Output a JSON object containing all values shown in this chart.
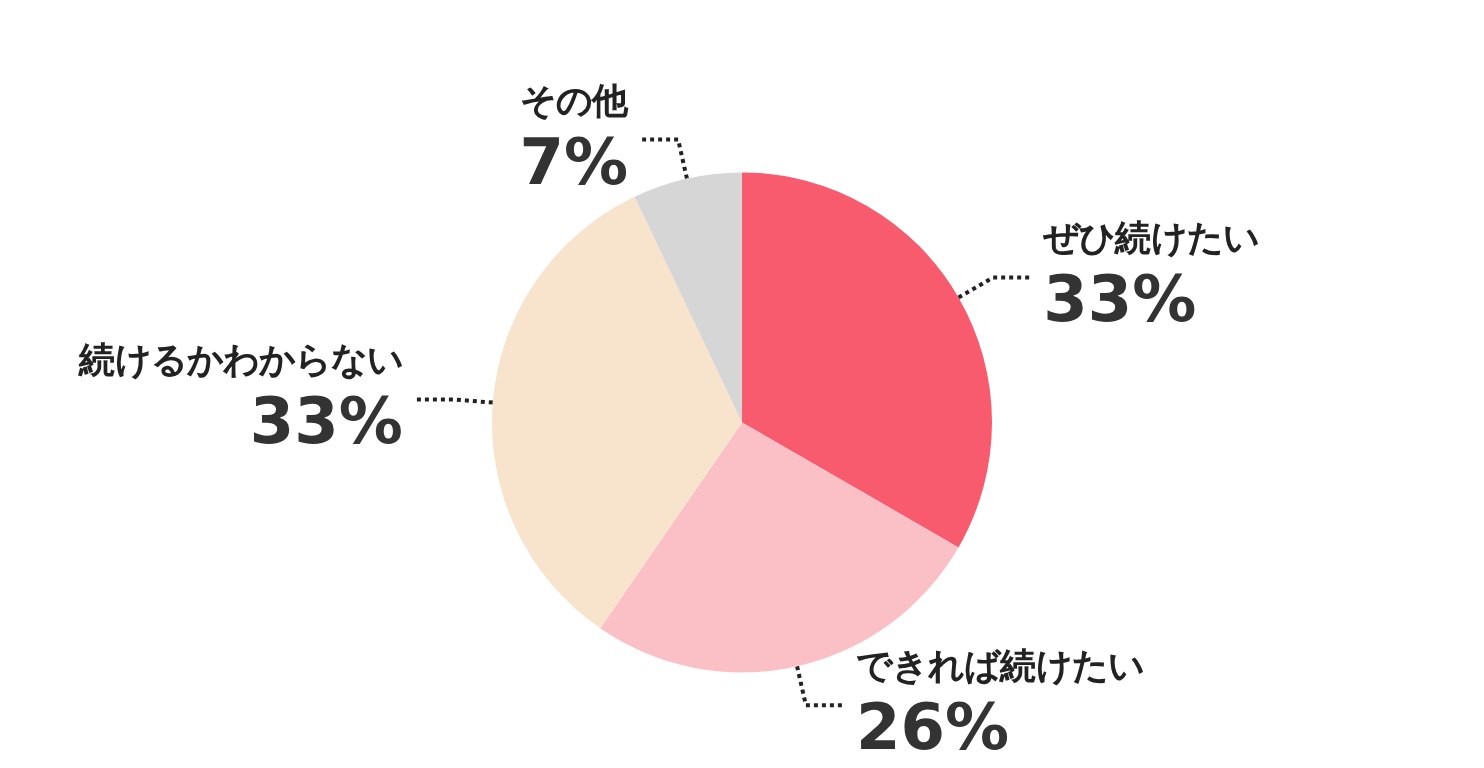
{
  "chart_data": {
    "type": "pie",
    "categories": [
      "ぜひ続けたい",
      "できれば続けたい",
      "続けるかわからない",
      "その他"
    ],
    "values": [
      33,
      26,
      33,
      7
    ],
    "value_labels": [
      "33%",
      "26%",
      "33%",
      "7%"
    ],
    "colors": [
      "#f85a6e",
      "#fbbfc6",
      "#f8e4cc",
      "#d6d6d6"
    ]
  }
}
